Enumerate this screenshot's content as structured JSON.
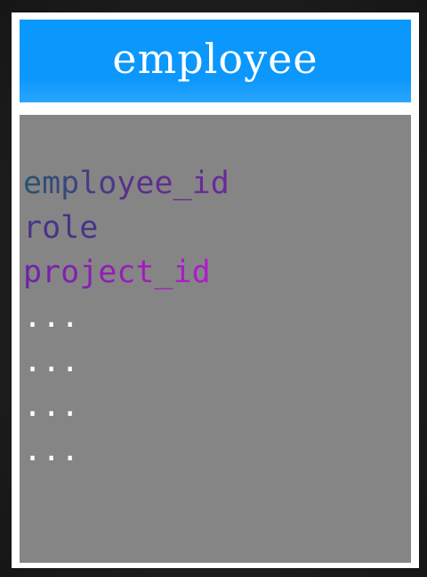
{
  "table": {
    "title": "employee",
    "fields": [
      {
        "label": "employee_id"
      },
      {
        "label": "role"
      },
      {
        "label": "project_id"
      },
      {
        "label": "..."
      },
      {
        "label": "..."
      },
      {
        "label": "..."
      },
      {
        "label": "..."
      }
    ]
  },
  "colors": {
    "header": "#0a98ff",
    "body": "#868586",
    "frame": "#ffffff",
    "background": "#1e1e1e"
  }
}
